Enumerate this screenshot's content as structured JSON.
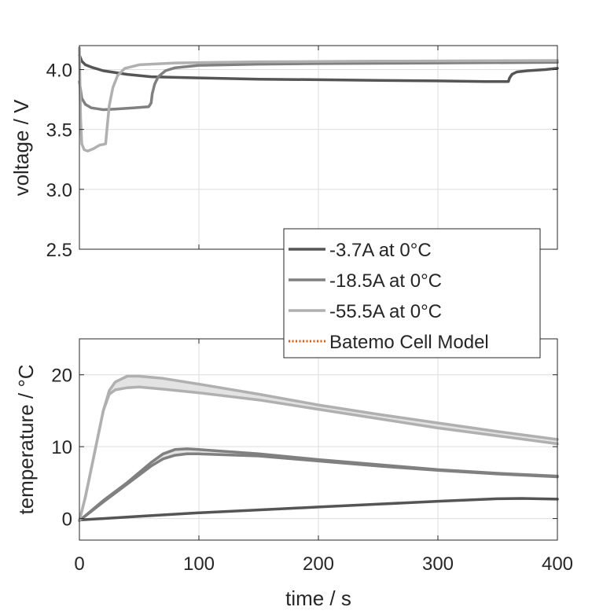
{
  "chart_data": [
    {
      "type": "line",
      "ylabel": "voltage / V",
      "xlim": [
        0,
        400
      ],
      "ylim": [
        2.5,
        4.2
      ],
      "xticks": [
        0,
        100,
        200,
        300,
        400
      ],
      "yticks": [
        2.5,
        3.0,
        3.5,
        4.0
      ],
      "ytick_labels": [
        "2.5",
        "3.0",
        "3.5",
        "4.0"
      ],
      "grid": true,
      "series": [
        {
          "name": "-3.7A at 0°C",
          "color": "#555555",
          "points": [
            [
              0,
              4.12
            ],
            [
              2,
              4.07
            ],
            [
              5,
              4.04
            ],
            [
              10,
              4.02
            ],
            [
              20,
              3.99
            ],
            [
              40,
              3.96
            ],
            [
              60,
              3.94
            ],
            [
              100,
              3.93
            ],
            [
              150,
              3.92
            ],
            [
              200,
              3.915
            ],
            [
              250,
              3.91
            ],
            [
              300,
              3.905
            ],
            [
              340,
              3.9
            ],
            [
              359,
              3.9
            ],
            [
              360,
              3.93
            ],
            [
              362,
              3.96
            ],
            [
              366,
              3.98
            ],
            [
              375,
              3.99
            ],
            [
              390,
              4.0
            ],
            [
              400,
              4.01
            ]
          ]
        },
        {
          "name": "-18.5A at 0°C",
          "color": "#808080",
          "points": [
            [
              0,
              3.9
            ],
            [
              2,
              3.76
            ],
            [
              5,
              3.71
            ],
            [
              10,
              3.68
            ],
            [
              20,
              3.665
            ],
            [
              30,
              3.67
            ],
            [
              45,
              3.68
            ],
            [
              58,
              3.69
            ],
            [
              60,
              3.72
            ],
            [
              61,
              3.8
            ],
            [
              63,
              3.88
            ],
            [
              66,
              3.94
            ],
            [
              72,
              3.99
            ],
            [
              80,
              4.015
            ],
            [
              100,
              4.035
            ],
            [
              150,
              4.045
            ],
            [
              200,
              4.05
            ],
            [
              300,
              4.055
            ],
            [
              400,
              4.06
            ]
          ]
        },
        {
          "name": "-55.5A at 0°C",
          "color": "#b0b0b0",
          "points": [
            [
              0,
              4.18
            ],
            [
              1,
              3.6
            ],
            [
              2,
              3.38
            ],
            [
              4,
              3.33
            ],
            [
              7,
              3.32
            ],
            [
              12,
              3.34
            ],
            [
              17,
              3.37
            ],
            [
              20,
              3.375
            ],
            [
              22,
              3.38
            ],
            [
              23,
              3.5
            ],
            [
              25,
              3.7
            ],
            [
              28,
              3.85
            ],
            [
              32,
              3.95
            ],
            [
              38,
              4.01
            ],
            [
              50,
              4.04
            ],
            [
              80,
              4.055
            ],
            [
              150,
              4.065
            ],
            [
              250,
              4.07
            ],
            [
              400,
              4.075
            ]
          ]
        }
      ]
    },
    {
      "type": "line",
      "xlabel": "time / s",
      "ylabel": "temperature / °C",
      "xlim": [
        0,
        400
      ],
      "ylim": [
        -3,
        25
      ],
      "xticks": [
        0,
        100,
        200,
        300,
        400
      ],
      "xtick_labels": [
        "0",
        "100",
        "200",
        "300",
        "400"
      ],
      "yticks": [
        0,
        10,
        20
      ],
      "ytick_labels": [
        "0",
        "10",
        "20"
      ],
      "grid": true,
      "series": [
        {
          "name": "-3.7A at 0°C",
          "color": "#555555",
          "points": [
            [
              0,
              -0.2
            ],
            [
              50,
              0.3
            ],
            [
              100,
              0.8
            ],
            [
              150,
              1.2
            ],
            [
              200,
              1.6
            ],
            [
              250,
              2.0
            ],
            [
              300,
              2.4
            ],
            [
              350,
              2.75
            ],
            [
              370,
              2.8
            ],
            [
              400,
              2.7
            ]
          ]
        },
        {
          "name": "-18.5A at 0°C",
          "color": "#808080",
          "points": [
            [
              0,
              -0.3
            ],
            [
              20,
              2.5
            ],
            [
              40,
              5
            ],
            [
              60,
              7.8
            ],
            [
              70,
              9.0
            ],
            [
              80,
              9.6
            ],
            [
              90,
              9.7
            ],
            [
              100,
              9.6
            ],
            [
              150,
              9.0
            ],
            [
              200,
              8.2
            ],
            [
              250,
              7.5
            ],
            [
              300,
              6.8
            ],
            [
              350,
              6.3
            ],
            [
              400,
              5.9
            ]
          ]
        },
        {
          "name": "-18.5A at 0°C (lower)",
          "color": "#808080",
          "points": [
            [
              0,
              -0.3
            ],
            [
              20,
              2.3
            ],
            [
              40,
              4.8
            ],
            [
              60,
              7.3
            ],
            [
              70,
              8.3
            ],
            [
              80,
              8.8
            ],
            [
              90,
              9.0
            ],
            [
              100,
              9.0
            ],
            [
              150,
              8.7
            ],
            [
              200,
              8.0
            ],
            [
              250,
              7.3
            ],
            [
              300,
              6.7
            ],
            [
              350,
              6.2
            ],
            [
              400,
              5.8
            ]
          ]
        },
        {
          "name": "-55.5A at 0°C",
          "color": "#b0b0b0",
          "points": [
            [
              0,
              -0.3
            ],
            [
              5,
              3
            ],
            [
              10,
              7
            ],
            [
              15,
              11
            ],
            [
              20,
              15
            ],
            [
              25,
              17.8
            ],
            [
              30,
              19.0
            ],
            [
              40,
              19.8
            ],
            [
              50,
              19.8
            ],
            [
              70,
              19.5
            ],
            [
              100,
              18.7
            ],
            [
              150,
              17.3
            ],
            [
              200,
              15.8
            ],
            [
              250,
              14.5
            ],
            [
              300,
              13.3
            ],
            [
              350,
              12.1
            ],
            [
              400,
              11.0
            ]
          ]
        },
        {
          "name": "-55.5A at 0°C (lower)",
          "color": "#b0b0b0",
          "points": [
            [
              0,
              -0.3
            ],
            [
              5,
              3
            ],
            [
              10,
              7
            ],
            [
              15,
              11
            ],
            [
              20,
              15
            ],
            [
              25,
              17.3
            ],
            [
              30,
              17.9
            ],
            [
              40,
              18.2
            ],
            [
              50,
              18.3
            ],
            [
              70,
              18.0
            ],
            [
              100,
              17.5
            ],
            [
              150,
              16.5
            ],
            [
              200,
              15.2
            ],
            [
              250,
              13.9
            ],
            [
              300,
              12.6
            ],
            [
              350,
              11.5
            ],
            [
              400,
              10.4
            ]
          ]
        }
      ]
    }
  ],
  "legend": {
    "position": "between panels, right",
    "entries": [
      {
        "label": "-3.7A at 0°C",
        "color": "#555555",
        "style": "solid"
      },
      {
        "label": "-18.5A at 0°C",
        "color": "#808080",
        "style": "solid"
      },
      {
        "label": "-55.5A at 0°C",
        "color": "#b0b0b0",
        "style": "solid"
      },
      {
        "label": "Batemo Cell Model",
        "color": "#e8590c",
        "style": "dotted"
      }
    ]
  }
}
